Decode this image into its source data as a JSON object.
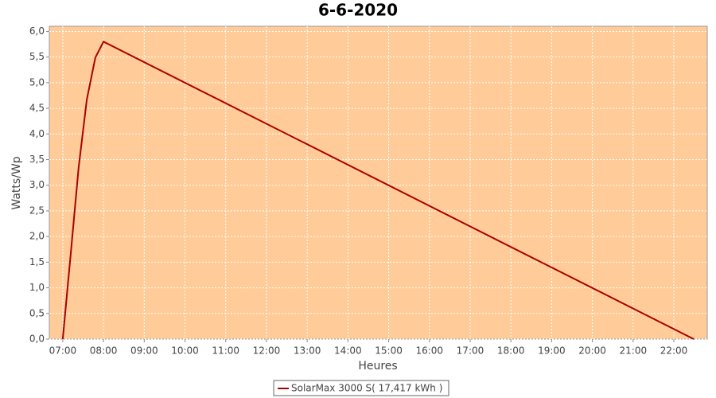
{
  "chart_data": {
    "type": "line",
    "title": "6-6-2020",
    "x_label": "Heures",
    "y_label": "Watts/Wp",
    "x": [
      7.0,
      7.2,
      7.39,
      7.59,
      7.8,
      8.0,
      22.49
    ],
    "series": [
      {
        "name": "SolarMax 3000 S( 17,417 kWh )",
        "color": "#aa0000",
        "values": [
          0,
          1.7,
          3.35,
          4.67,
          5.49,
          5.8,
          0
        ]
      }
    ],
    "xlim": [
      6.67,
      22.82
    ],
    "xticks": [
      {
        "value": 7,
        "label": "07:00"
      },
      {
        "value": 8,
        "label": "08:00"
      },
      {
        "value": 9,
        "label": "09:00"
      },
      {
        "value": 10,
        "label": "10:00"
      },
      {
        "value": 11,
        "label": "11:00"
      },
      {
        "value": 12,
        "label": "12:00"
      },
      {
        "value": 13,
        "label": "13:00"
      },
      {
        "value": 14,
        "label": "14:00"
      },
      {
        "value": 15,
        "label": "15:00"
      },
      {
        "value": 16,
        "label": "16:00"
      },
      {
        "value": 17,
        "label": "17:00"
      },
      {
        "value": 18,
        "label": "18:00"
      },
      {
        "value": 19,
        "label": "19:00"
      },
      {
        "value": 20,
        "label": "20:00"
      },
      {
        "value": 21,
        "label": "21:00"
      },
      {
        "value": 22,
        "label": "22:00"
      }
    ],
    "ylim": [
      0,
      6.1
    ],
    "yticks": [
      {
        "value": 0,
        "label": "0,0"
      },
      {
        "value": 0.5,
        "label": "0,5"
      },
      {
        "value": 1,
        "label": "1,0"
      },
      {
        "value": 1.5,
        "label": "1,5"
      },
      {
        "value": 2,
        "label": "2,0"
      },
      {
        "value": 2.5,
        "label": "2,5"
      },
      {
        "value": 3,
        "label": "3,0"
      },
      {
        "value": 3.5,
        "label": "3,5"
      },
      {
        "value": 4,
        "label": "4,0"
      },
      {
        "value": 4.5,
        "label": "4,5"
      },
      {
        "value": 5,
        "label": "5,0"
      },
      {
        "value": 5.5,
        "label": "5,5"
      },
      {
        "value": 6,
        "label": "6,0"
      }
    ],
    "grid": true,
    "plot_background": "#ffcc99",
    "legend": "bottom"
  }
}
